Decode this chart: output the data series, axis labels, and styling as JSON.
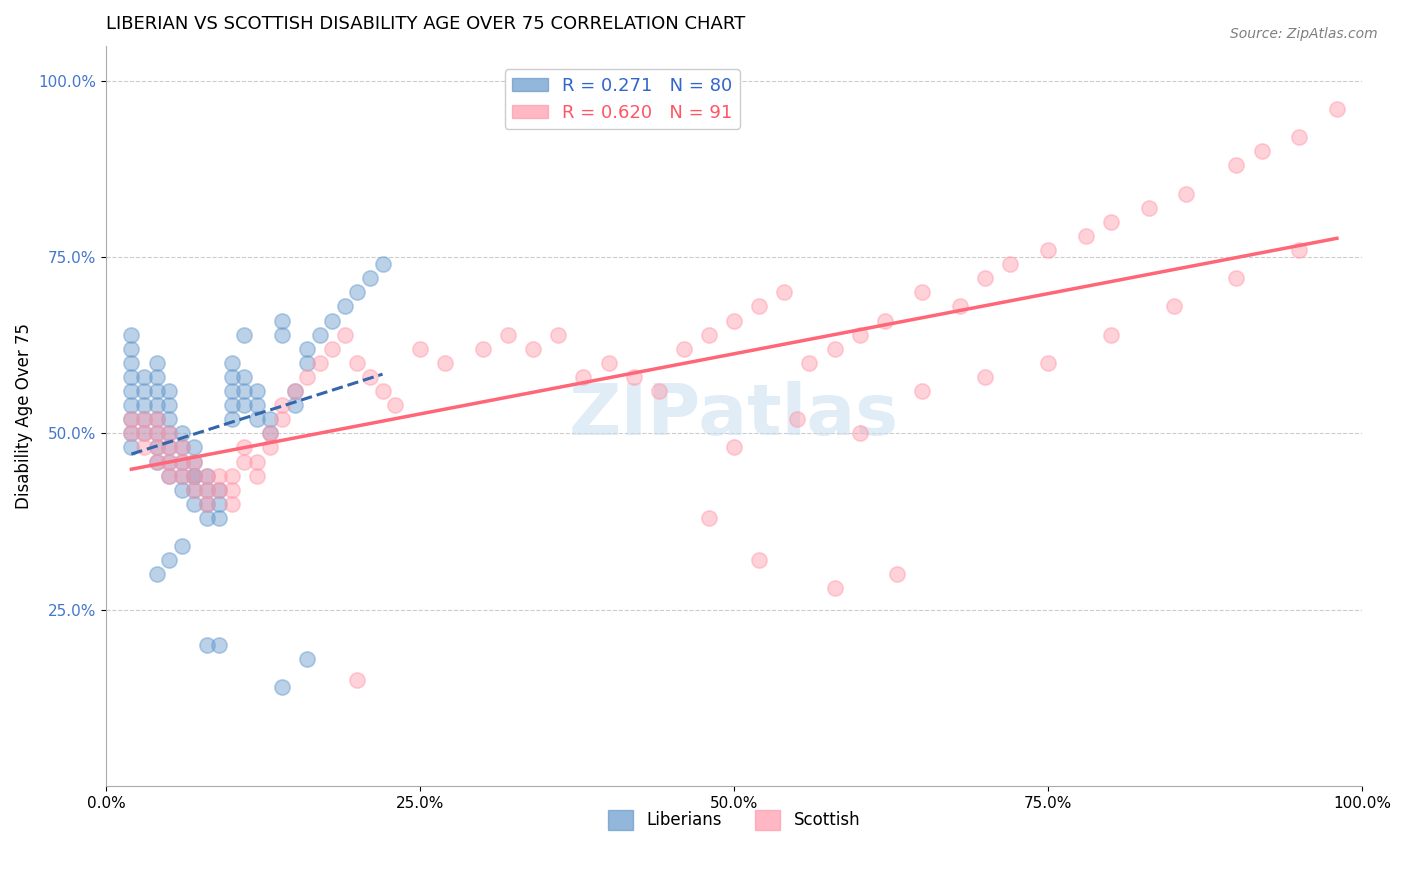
{
  "title": "LIBERIAN VS SCOTTISH DISABILITY AGE OVER 75 CORRELATION CHART",
  "source": "Source: ZipAtlas.com",
  "ylabel": "Disability Age Over 75",
  "xlabel": "",
  "liberian_R": 0.271,
  "liberian_N": 80,
  "scottish_R": 0.62,
  "scottish_N": 91,
  "liberian_color": "#6699cc",
  "scottish_color": "#ff99aa",
  "liberian_trend_color": "#3366aa",
  "scottish_trend_color": "#ff6677",
  "background_color": "#ffffff",
  "xlim": [
    0.0,
    1.0
  ],
  "ylim": [
    0.0,
    1.05
  ],
  "xticks": [
    0.0,
    0.25,
    0.5,
    0.75,
    1.0
  ],
  "yticks": [
    0.25,
    0.5,
    0.75,
    1.0
  ],
  "xtick_labels": [
    "0.0%",
    "25.0%",
    "50.0%",
    "75.0%",
    "100.0%"
  ],
  "ytick_labels": [
    "25.0%",
    "50.0%",
    "75.0%",
    "100.0%"
  ],
  "liberian_x": [
    0.02,
    0.02,
    0.02,
    0.02,
    0.02,
    0.02,
    0.02,
    0.02,
    0.02,
    0.03,
    0.03,
    0.03,
    0.03,
    0.03,
    0.04,
    0.04,
    0.04,
    0.04,
    0.04,
    0.04,
    0.04,
    0.04,
    0.05,
    0.05,
    0.05,
    0.05,
    0.05,
    0.05,
    0.05,
    0.06,
    0.06,
    0.06,
    0.06,
    0.06,
    0.07,
    0.07,
    0.07,
    0.07,
    0.07,
    0.08,
    0.08,
    0.08,
    0.08,
    0.09,
    0.09,
    0.09,
    0.1,
    0.1,
    0.1,
    0.1,
    0.11,
    0.11,
    0.11,
    0.12,
    0.12,
    0.12,
    0.13,
    0.13,
    0.14,
    0.14,
    0.15,
    0.15,
    0.16,
    0.16,
    0.17,
    0.18,
    0.19,
    0.2,
    0.21,
    0.22,
    0.04,
    0.05,
    0.06,
    0.07,
    0.08,
    0.09,
    0.1,
    0.11,
    0.14,
    0.16
  ],
  "liberian_y": [
    0.48,
    0.5,
    0.52,
    0.54,
    0.56,
    0.58,
    0.6,
    0.62,
    0.64,
    0.5,
    0.52,
    0.54,
    0.56,
    0.58,
    0.46,
    0.48,
    0.5,
    0.52,
    0.54,
    0.56,
    0.58,
    0.6,
    0.44,
    0.46,
    0.48,
    0.5,
    0.52,
    0.54,
    0.56,
    0.42,
    0.44,
    0.46,
    0.48,
    0.5,
    0.4,
    0.42,
    0.44,
    0.46,
    0.48,
    0.38,
    0.4,
    0.42,
    0.44,
    0.38,
    0.4,
    0.42,
    0.54,
    0.56,
    0.58,
    0.6,
    0.54,
    0.56,
    0.58,
    0.52,
    0.54,
    0.56,
    0.5,
    0.52,
    0.64,
    0.66,
    0.54,
    0.56,
    0.6,
    0.62,
    0.64,
    0.66,
    0.68,
    0.7,
    0.72,
    0.74,
    0.3,
    0.32,
    0.34,
    0.44,
    0.2,
    0.2,
    0.52,
    0.64,
    0.14,
    0.18
  ],
  "scottish_x": [
    0.02,
    0.02,
    0.03,
    0.03,
    0.03,
    0.04,
    0.04,
    0.04,
    0.04,
    0.05,
    0.05,
    0.05,
    0.05,
    0.06,
    0.06,
    0.06,
    0.07,
    0.07,
    0.07,
    0.08,
    0.08,
    0.08,
    0.09,
    0.09,
    0.1,
    0.1,
    0.1,
    0.11,
    0.11,
    0.12,
    0.12,
    0.13,
    0.13,
    0.14,
    0.14,
    0.15,
    0.16,
    0.17,
    0.18,
    0.19,
    0.2,
    0.21,
    0.22,
    0.23,
    0.25,
    0.27,
    0.3,
    0.32,
    0.34,
    0.36,
    0.38,
    0.4,
    0.42,
    0.44,
    0.46,
    0.48,
    0.5,
    0.52,
    0.54,
    0.56,
    0.58,
    0.6,
    0.62,
    0.65,
    0.68,
    0.7,
    0.72,
    0.75,
    0.78,
    0.8,
    0.83,
    0.86,
    0.9,
    0.92,
    0.95,
    0.98,
    0.5,
    0.55,
    0.6,
    0.65,
    0.7,
    0.75,
    0.8,
    0.85,
    0.9,
    0.95,
    0.48,
    0.52,
    0.58,
    0.63,
    0.2
  ],
  "scottish_y": [
    0.5,
    0.52,
    0.48,
    0.5,
    0.52,
    0.46,
    0.48,
    0.5,
    0.52,
    0.44,
    0.46,
    0.48,
    0.5,
    0.44,
    0.46,
    0.48,
    0.42,
    0.44,
    0.46,
    0.4,
    0.42,
    0.44,
    0.42,
    0.44,
    0.4,
    0.42,
    0.44,
    0.46,
    0.48,
    0.44,
    0.46,
    0.48,
    0.5,
    0.52,
    0.54,
    0.56,
    0.58,
    0.6,
    0.62,
    0.64,
    0.6,
    0.58,
    0.56,
    0.54,
    0.62,
    0.6,
    0.62,
    0.64,
    0.62,
    0.64,
    0.58,
    0.6,
    0.58,
    0.56,
    0.62,
    0.64,
    0.66,
    0.68,
    0.7,
    0.6,
    0.62,
    0.64,
    0.66,
    0.7,
    0.68,
    0.72,
    0.74,
    0.76,
    0.78,
    0.8,
    0.82,
    0.84,
    0.88,
    0.9,
    0.92,
    0.96,
    0.48,
    0.52,
    0.5,
    0.56,
    0.58,
    0.6,
    0.64,
    0.68,
    0.72,
    0.76,
    0.38,
    0.32,
    0.28,
    0.3,
    0.15
  ],
  "watermark": "ZIPatlas",
  "legend_fontsize": 13,
  "title_fontsize": 13,
  "axis_label_fontsize": 12,
  "tick_fontsize": 11,
  "marker_size": 120,
  "marker_alpha": 0.45
}
